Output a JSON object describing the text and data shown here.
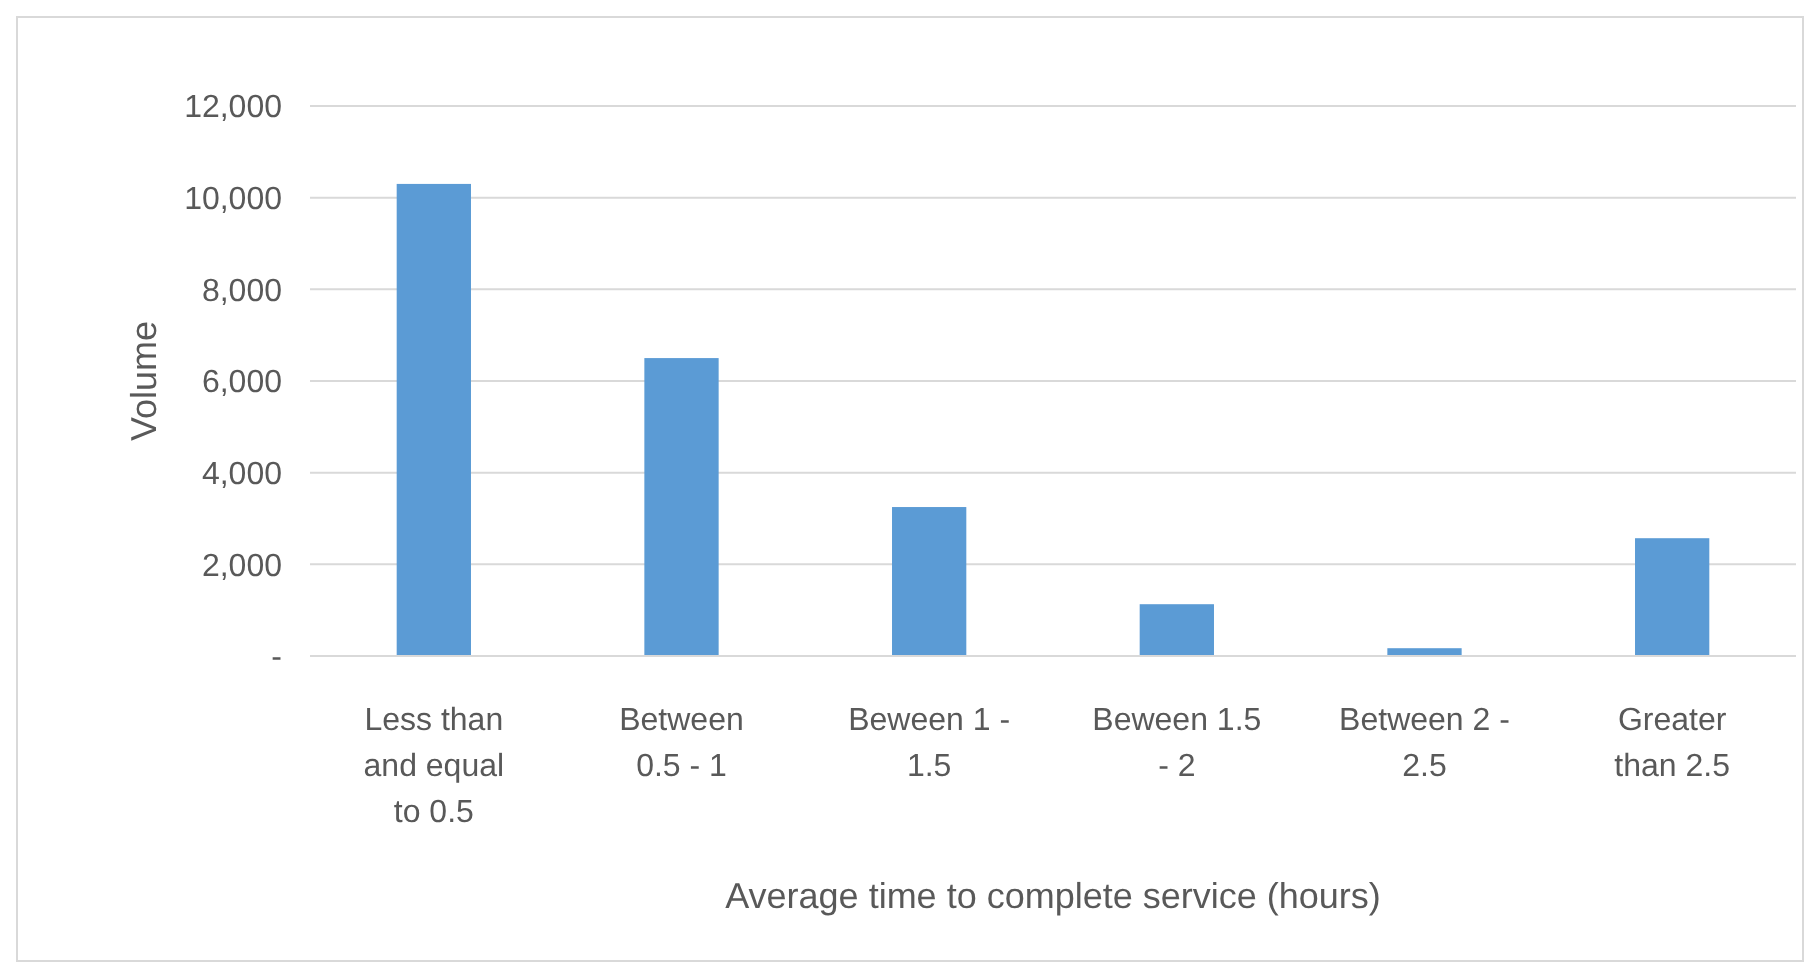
{
  "chart_data": {
    "type": "bar",
    "xlabel": "Average time to complete service (hours)",
    "ylabel": "Volume",
    "categories": [
      "Less than and equal to 0.5",
      "Between 0.5 - 1",
      "Beween 1 - 1.5",
      "Beween 1.5 - 2",
      "Between 2 - 2.5",
      "Greater than 2.5"
    ],
    "values": [
      10300,
      6500,
      3250,
      1130,
      170,
      2570
    ],
    "color": "#5b9bd5",
    "ylim": [
      0,
      12000
    ],
    "yticks": [
      {
        "value": 0,
        "label": "-"
      },
      {
        "value": 2000,
        "label": "2,000"
      },
      {
        "value": 4000,
        "label": "4,000"
      },
      {
        "value": 6000,
        "label": "6,000"
      },
      {
        "value": 8000,
        "label": "8,000"
      },
      {
        "value": 10000,
        "label": "10,000"
      },
      {
        "value": 12000,
        "label": "12,000"
      }
    ],
    "grid": "y"
  }
}
